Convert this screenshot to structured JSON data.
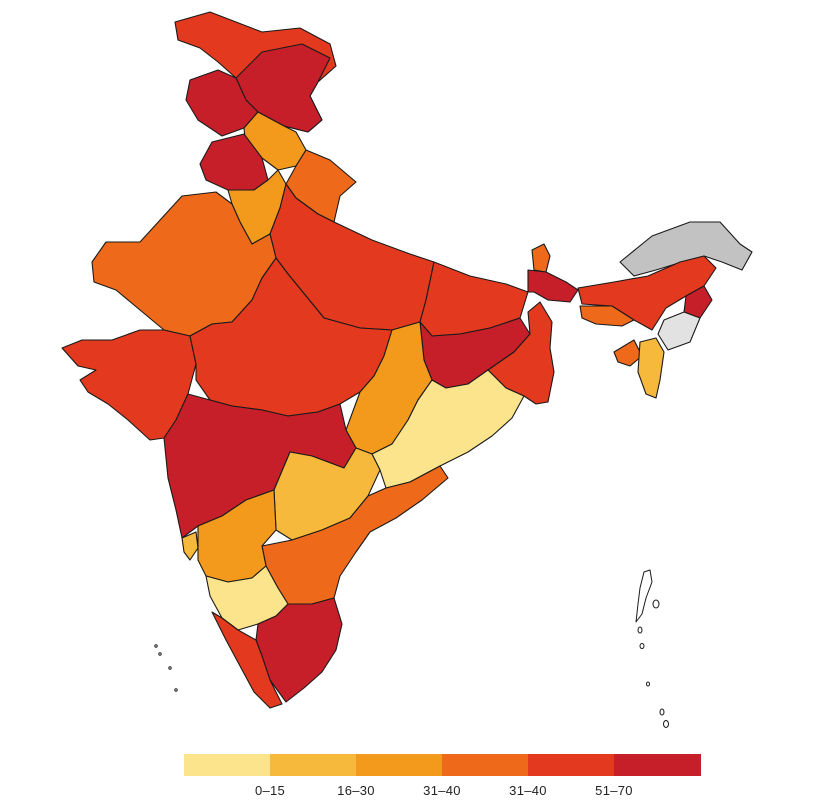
{
  "colors": {
    "bin1": "#fbe48b",
    "bin2": "#f6b93b",
    "bin3": "#f39a1d",
    "bin4": "#ee6a1a",
    "bin5": "#e2391f",
    "bin6": "#c71f2a",
    "no_data": "#c2c2c2",
    "no_data_light": "#e2e2e2",
    "border": "#1a1a1a"
  },
  "legend": {
    "bins": [
      {
        "label": "0–15",
        "color": "#fbe48b"
      },
      {
        "label": "16–30",
        "color": "#f6b93b"
      },
      {
        "label": "31–40",
        "color": "#f39a1d"
      },
      {
        "label": "31–40",
        "color": "#ee6a1a"
      },
      {
        "label": "51–70",
        "color": "#e2391f"
      },
      {
        "label": "",
        "color": "#c71f2a"
      }
    ]
  }
}
